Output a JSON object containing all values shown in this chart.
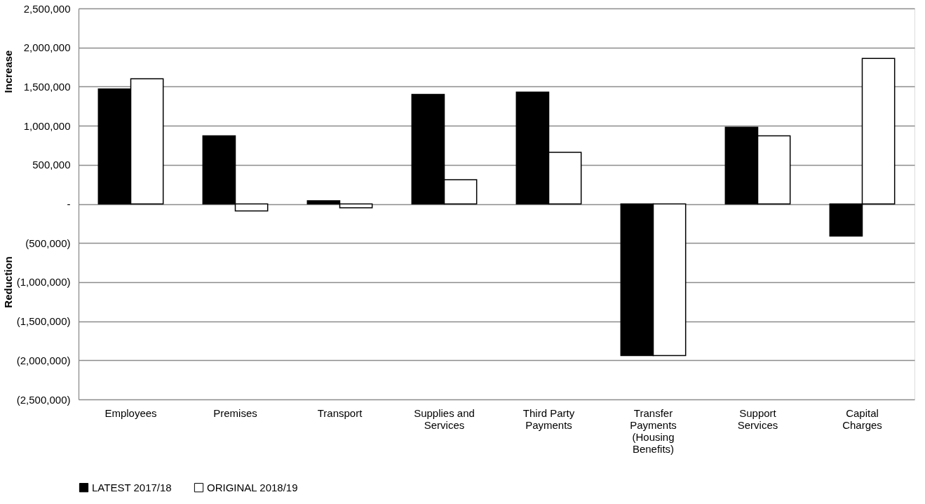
{
  "chart_data": {
    "type": "bar",
    "categories": [
      "Employees",
      "Premises",
      "Transport",
      "Supplies and Services",
      "Third Party Payments",
      "Transfer Payments (Housing Benefits)",
      "Support Services",
      "Capital Charges"
    ],
    "series": [
      {
        "name": "LATEST 2017/18",
        "color": "#000000",
        "values": [
          1470000,
          870000,
          40000,
          1400000,
          1430000,
          -1940000,
          980000,
          -410000
        ]
      },
      {
        "name": "ORIGINAL 2018/19",
        "color": "#ffffff",
        "values": [
          1600000,
          -90000,
          -50000,
          310000,
          660000,
          -1940000,
          870000,
          1860000
        ]
      }
    ],
    "ylim": [
      -2500000,
      2500000
    ],
    "yticks": [
      {
        "value": -2500000,
        "label": "(2,500,000)"
      },
      {
        "value": -2000000,
        "label": "(2,000,000)"
      },
      {
        "value": -1500000,
        "label": "(1,500,000)"
      },
      {
        "value": -1000000,
        "label": "(1,000,000)"
      },
      {
        "value": -500000,
        "label": "(500,000)"
      },
      {
        "value": 0,
        "label": "-"
      },
      {
        "value": 500000,
        "label": "500,000"
      },
      {
        "value": 1000000,
        "label": "1,000,000"
      },
      {
        "value": 1500000,
        "label": "1,500,000"
      },
      {
        "value": 2000000,
        "label": "2,000,000"
      },
      {
        "value": 2500000,
        "label": "2,500,000"
      }
    ],
    "annotations": [
      "Increase",
      "Reduction"
    ],
    "grid": "y",
    "legend": "bottom"
  }
}
